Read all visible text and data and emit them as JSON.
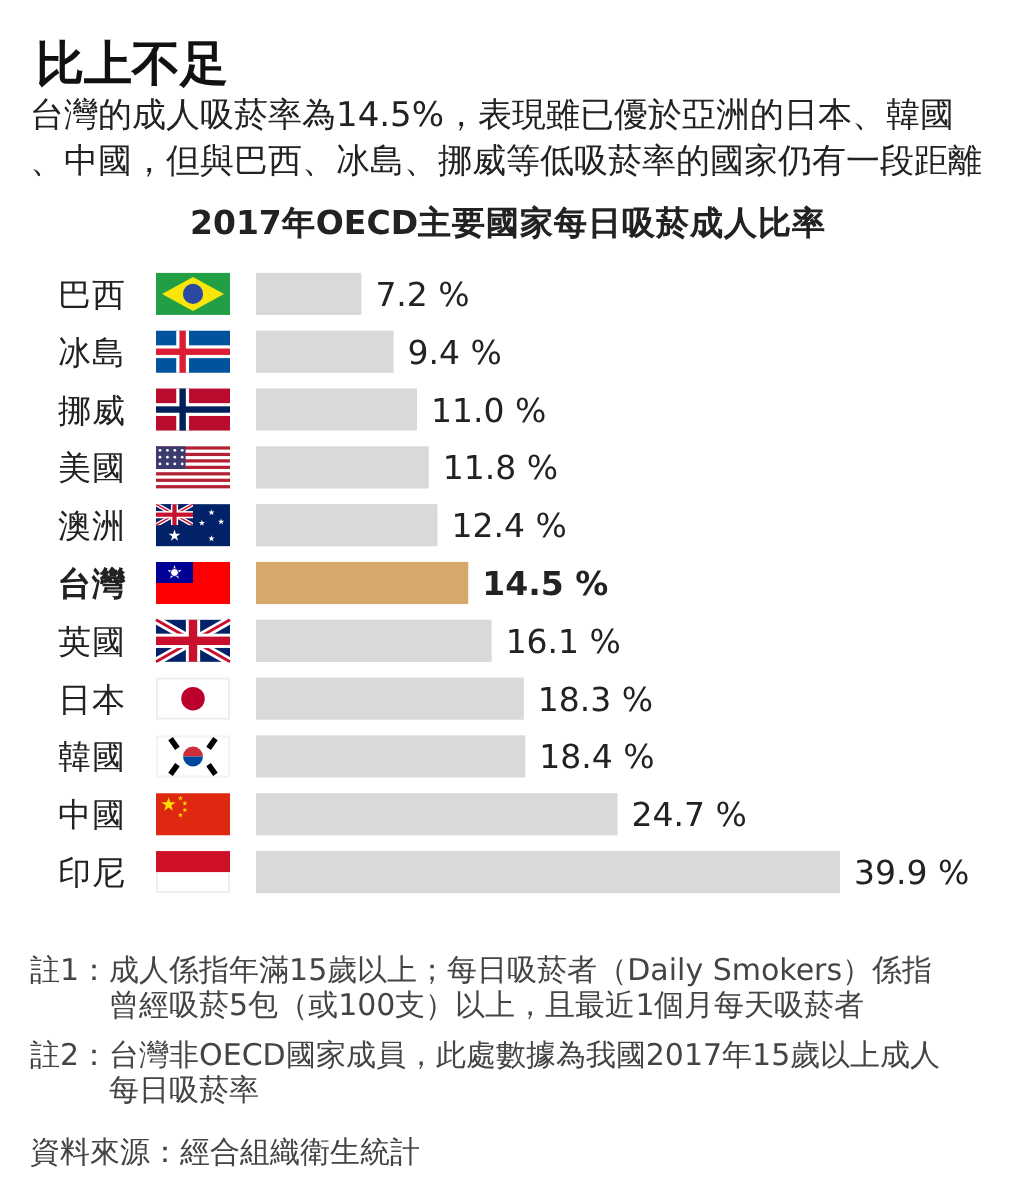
{
  "chart_data": {
    "type": "bar",
    "orientation": "horizontal",
    "title": "比上不足",
    "subtitle": "台灣的成人吸菸率為14.5%，表現雖已優於亞洲的日本、韓國、中國，但與巴西、冰島、挪威等低吸菸率的國家仍有一段距離",
    "categories": [
      "巴西",
      "冰島",
      "挪威",
      "美國",
      "澳洲",
      "台灣",
      "英國",
      "日本",
      "韓國",
      "中國",
      "印尼"
    ],
    "values": [
      7.2,
      9.4,
      11.0,
      11.8,
      12.4,
      14.5,
      16.1,
      18.3,
      18.4,
      24.7,
      39.9
    ],
    "value_labels": [
      "7.2 %",
      "9.4 %",
      "11.0 %",
      "11.8 %",
      "12.4 %",
      "14.5 %",
      "16.1 %",
      "18.3 %",
      "18.4 %",
      "24.7 %",
      "39.9 %"
    ],
    "colors": [
      "#d9d9d9",
      "#d9d9d9",
      "#d9d9d9",
      "#d9d9d9",
      "#d9d9d9",
      "#d4a96a",
      "#d9d9d9",
      "#d9d9d9",
      "#d9d9d9",
      "#d9d9d9",
      "#d9d9d9"
    ],
    "annotations": [
      "2017年OECD主要國家每日吸菸成人比率",
      "註1：成人係指年滿15歲以上；每日吸菸者（Daily Smokers）係指曾經吸菸5包（或100支）以上，且最近1個月每天吸菸者",
      "註2：台灣非OECD國家成員，此處數據為我國2017年15歲以上成人每日吸菸率",
      "資料來源：經合組織衛生統計"
    ]
  }
}
